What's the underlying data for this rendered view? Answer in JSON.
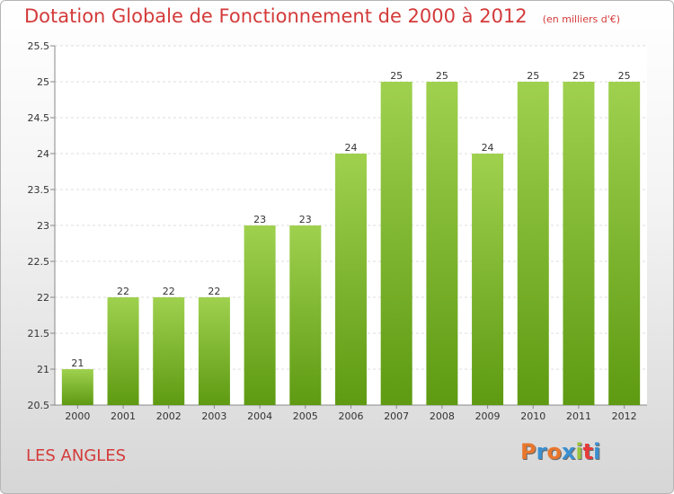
{
  "header": {
    "title": "Dotation Globale de Fonctionnement de 2000 à 2012",
    "subtitle": "(en milliers d'€)"
  },
  "footer": {
    "commune": "LES ANGLES",
    "logo": "Proxiti"
  },
  "colors": {
    "title": "#d43a3a",
    "bar_top": "#9fd14f",
    "bar_bottom": "#5e9a12",
    "logo_letters": [
      "#e8762c",
      "#3a8fd1",
      "#e8762c",
      "#3a8fd1",
      "#9bc53d",
      "#e83a3a",
      "#3a8fd1"
    ]
  },
  "chart_data": {
    "type": "bar",
    "title": "Dotation Globale de Fonctionnement de 2000 à 2012",
    "subtitle": "(en milliers d'€)",
    "categories": [
      "2000",
      "2001",
      "2002",
      "2003",
      "2004",
      "2005",
      "2006",
      "2007",
      "2008",
      "2009",
      "2010",
      "2011",
      "2012"
    ],
    "values": [
      21,
      22,
      22,
      22,
      23,
      23,
      24,
      25,
      25,
      24,
      25,
      25,
      25
    ],
    "data_labels": [
      "21",
      "22",
      "22",
      "22",
      "23",
      "23",
      "24",
      "25",
      "25",
      "24",
      "25",
      "25",
      "25"
    ],
    "yticks": [
      "20.5",
      "21",
      "21.5",
      "22",
      "22.5",
      "23",
      "23.5",
      "24",
      "24.5",
      "25",
      "25.5"
    ],
    "ylim": [
      20.5,
      25.5
    ],
    "grid": true,
    "legend": "none"
  }
}
